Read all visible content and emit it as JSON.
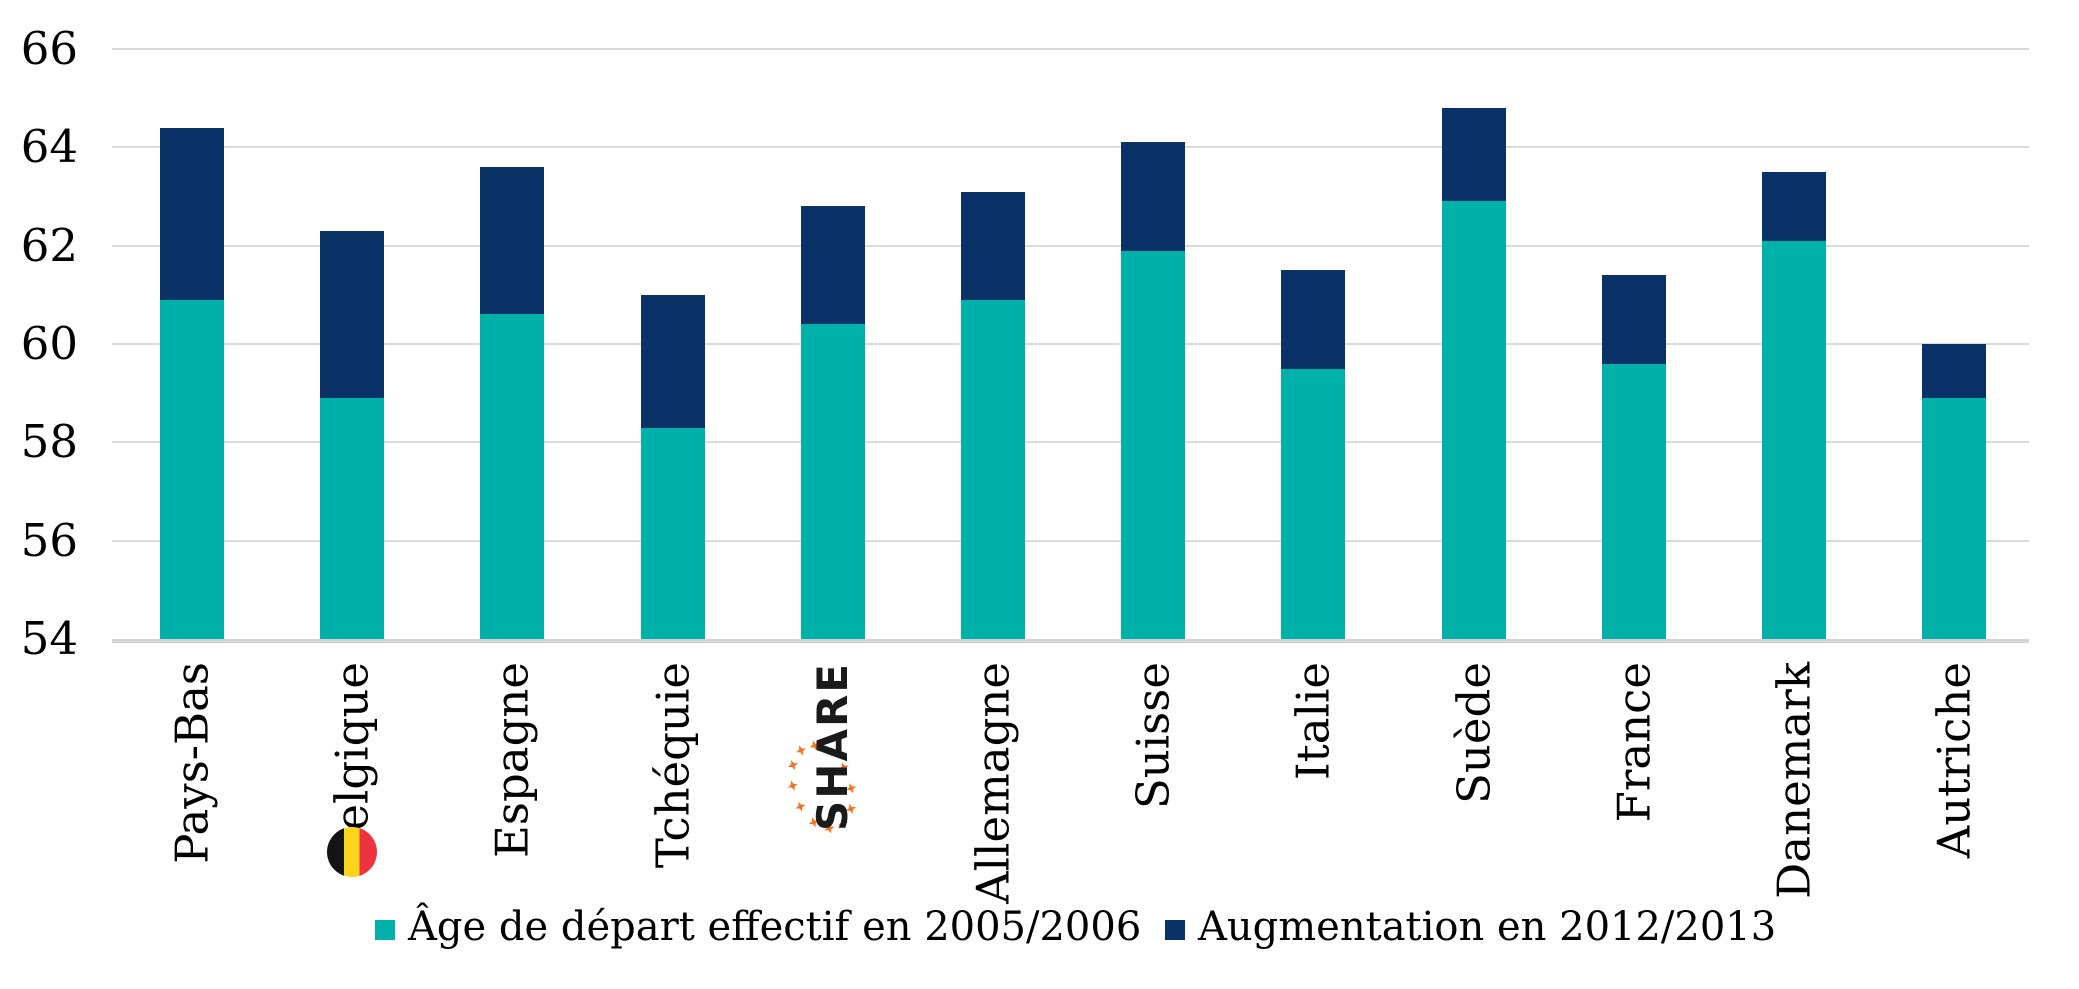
{
  "chart_data": {
    "type": "bar",
    "stacked": true,
    "title": "",
    "xlabel": "",
    "ylabel": "",
    "categories": [
      "Pays-Bas",
      "Belgique",
      "Espagne",
      "Tchéquie",
      "SHARE",
      "Allemagne",
      "Suisse",
      "Italie",
      "Suède",
      "France",
      "Danemark",
      "Autriche"
    ],
    "series": [
      {
        "name": "Âge de départ effectif en 2005/2006",
        "color": "#00B1AA",
        "values": [
          60.9,
          58.9,
          60.6,
          58.3,
          60.4,
          60.9,
          61.9,
          59.5,
          62.9,
          59.6,
          62.1,
          58.9
        ]
      },
      {
        "name": "Augmentation en 2012/2013",
        "color": "#0A3266",
        "values": [
          3.5,
          3.4,
          3.0,
          2.7,
          2.4,
          2.2,
          2.2,
          2.0,
          1.9,
          1.8,
          1.4,
          1.1
        ]
      }
    ],
    "stack_totals": [
      64.4,
      62.3,
      63.6,
      61.0,
      62.8,
      63.1,
      64.1,
      61.5,
      64.8,
      61.4,
      63.5,
      60.0
    ],
    "ylim": [
      54,
      66
    ],
    "yticks": [
      66,
      64,
      62,
      60,
      58,
      56,
      54
    ],
    "grid": true,
    "legend_position": "bottom"
  },
  "decorations": {
    "share_logo": {
      "text": "SHARE",
      "text_color": "#1A1A1A",
      "mark_color": "#F4731E",
      "at_category": "SHARE"
    },
    "belgium_flag": {
      "stripes": [
        "#141414",
        "#FBD51C",
        "#EE3340"
      ],
      "at_category": "Belgique"
    }
  },
  "style_colors": {
    "grid": "#DADADA",
    "axis_baseline": "#D4D4D4",
    "text": "#000000",
    "background": "#FFFFFF"
  }
}
